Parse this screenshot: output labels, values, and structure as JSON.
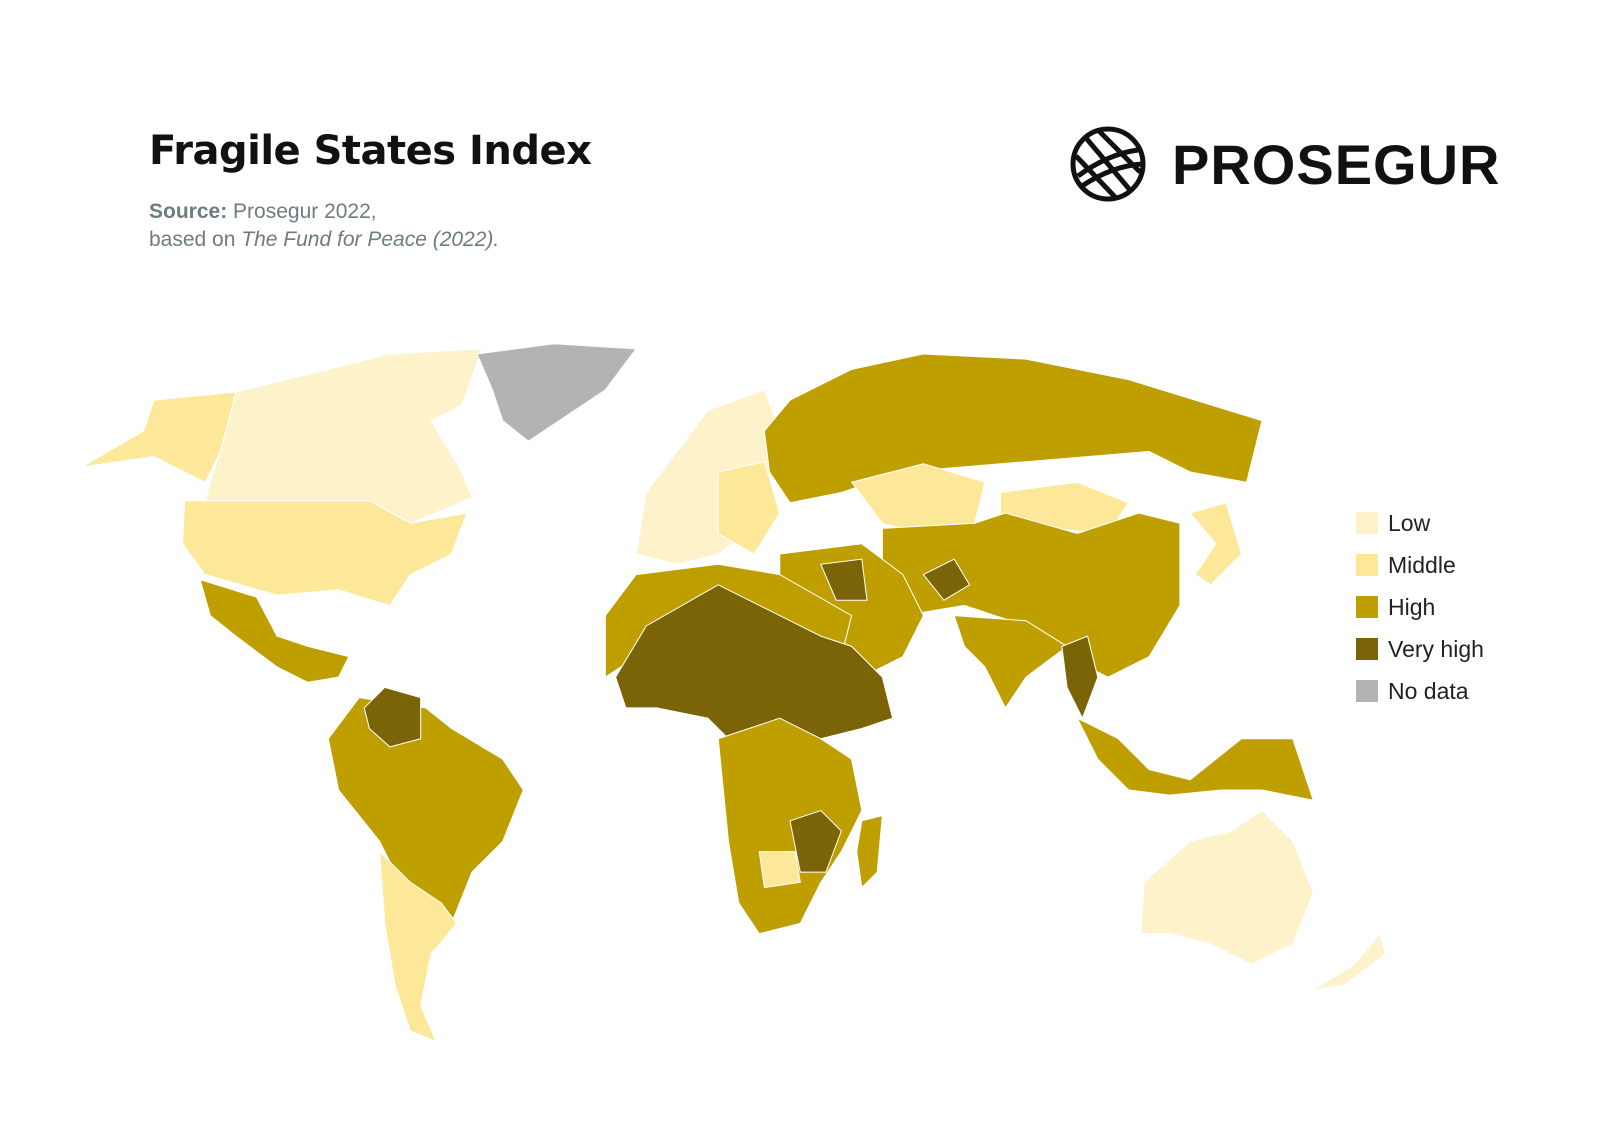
{
  "header": {
    "title": "Fragile States Index",
    "source_label": "Source:",
    "source": "Prosegur 2022,",
    "based_on": "based on",
    "reference": "The Fund for Peace (2022).",
    "logo": "PROSEGUR"
  },
  "legend": {
    "items": [
      {
        "label": "Low",
        "color": "#fdf2c9"
      },
      {
        "label": "Middle",
        "color": "#fde89a"
      },
      {
        "label": "High",
        "color": "#bf9f00"
      },
      {
        "label": "Very high",
        "color": "#7b6407"
      },
      {
        "label": "No data",
        "color": "#b3b3b3"
      }
    ]
  }
}
